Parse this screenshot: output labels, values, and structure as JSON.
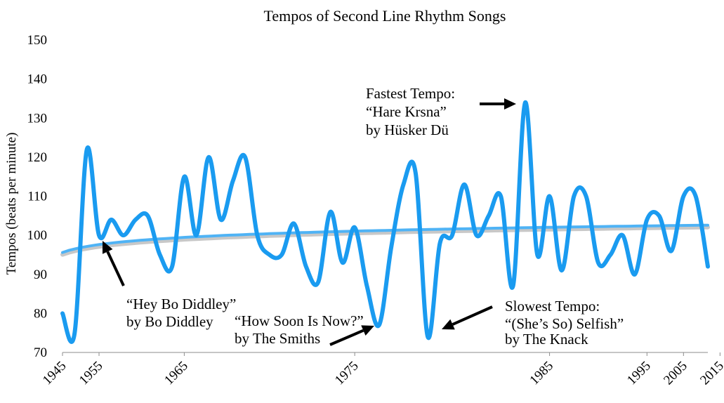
{
  "chart_data": {
    "type": "line",
    "title": "Tempos of Second Line Rhythm Songs",
    "xlabel": "",
    "ylabel": "Tempos (beats per minute)",
    "ylim": [
      70,
      150
    ],
    "y_ticks": [
      70,
      80,
      90,
      100,
      110,
      120,
      130,
      140,
      150
    ],
    "x_ticks": [
      {
        "label": "1945",
        "index": 0
      },
      {
        "label": "1955",
        "index": 3
      },
      {
        "label": "1965",
        "index": 10
      },
      {
        "label": "1975",
        "index": 24
      },
      {
        "label": "1985",
        "index": 40
      },
      {
        "label": "1995",
        "index": 48
      },
      {
        "label": "2005",
        "index": 51
      },
      {
        "label": "2015",
        "index": 54
      }
    ],
    "grid": false,
    "series": [
      {
        "name": "Tempo",
        "color": "#1a9bf0",
        "values": [
          80,
          75,
          122,
          100,
          104,
          100,
          104,
          105,
          95,
          92,
          115,
          100,
          120,
          104,
          114,
          120,
          100,
          95,
          95,
          103,
          92,
          88,
          106,
          93,
          102,
          87,
          77,
          97,
          113,
          116,
          74,
          98,
          100,
          113,
          100,
          105,
          110,
          87,
          134,
          95,
          110,
          91,
          110,
          110,
          93,
          95,
          100,
          90,
          104,
          105,
          96,
          110,
          110,
          92
        ]
      },
      {
        "name": "Trend",
        "color": "#4fb3f5",
        "trend": {
          "type": "log",
          "start": 95.6,
          "end": 102.6
        }
      }
    ],
    "annotations": [
      {
        "lines": [
          "Fastest Tempo:",
          "“Hare Krsna”",
          "by Hüsker Dü"
        ],
        "point_index": 38
      },
      {
        "lines": [
          "“Hey Bo Diddley”",
          "by Bo Diddley"
        ],
        "point_index": 3
      },
      {
        "lines": [
          "“How Soon Is Now?”",
          "by The Smiths"
        ],
        "point_index": 26
      },
      {
        "lines": [
          "Slowest Tempo:",
          "“(She’s So) Selfish”",
          "by The Knack"
        ],
        "point_index": 30
      }
    ]
  }
}
